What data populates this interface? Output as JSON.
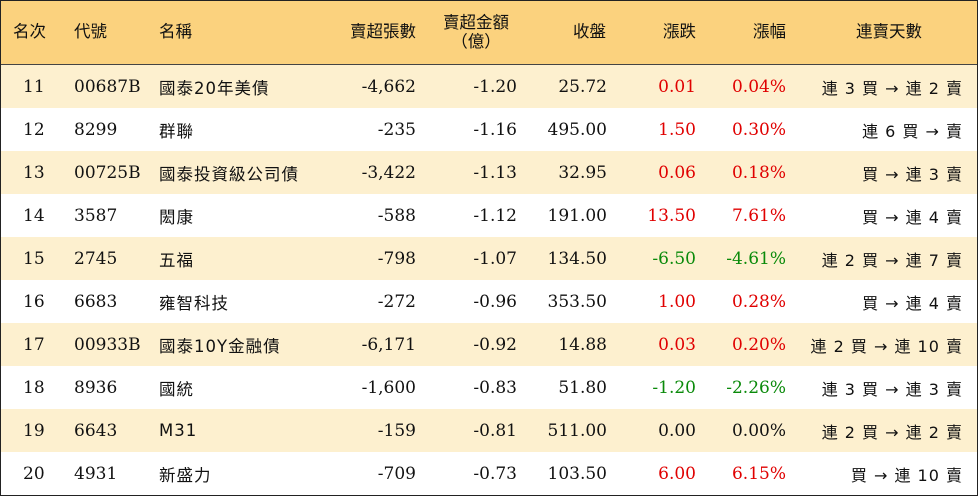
{
  "headers": {
    "rank": "名次",
    "code": "代號",
    "name": "名稱",
    "net_sell_shares": "賣超張數",
    "net_sell_amount_line1": "賣超金額",
    "net_sell_amount_line2": "（億）",
    "close": "收盤",
    "change": "漲跌",
    "change_pct": "漲幅",
    "streak": "連賣天數"
  },
  "colors": {
    "header_bg": "#fbd27e",
    "row_alt_bg": "#fdf0cf",
    "up": "#e00000",
    "down": "#0a8a0a"
  },
  "rows": [
    {
      "rank": "11",
      "code": "00687B",
      "name": "國泰20年美債",
      "shares": "-4,662",
      "amount": "-1.20",
      "close": "25.72",
      "change": "0.01",
      "pct": "0.04%",
      "dir": "up",
      "streak": "連 3 買 → 連 2 賣"
    },
    {
      "rank": "12",
      "code": "8299",
      "name": "群聯",
      "shares": "-235",
      "amount": "-1.16",
      "close": "495.00",
      "change": "1.50",
      "pct": "0.30%",
      "dir": "up",
      "streak": "連 6 買 → 賣"
    },
    {
      "rank": "13",
      "code": "00725B",
      "name": "國泰投資級公司債",
      "shares": "-3,422",
      "amount": "-1.13",
      "close": "32.95",
      "change": "0.06",
      "pct": "0.18%",
      "dir": "up",
      "streak": "買 → 連 3 賣"
    },
    {
      "rank": "14",
      "code": "3587",
      "name": "閎康",
      "shares": "-588",
      "amount": "-1.12",
      "close": "191.00",
      "change": "13.50",
      "pct": "7.61%",
      "dir": "up",
      "streak": "買 → 連 4 賣"
    },
    {
      "rank": "15",
      "code": "2745",
      "name": "五福",
      "shares": "-798",
      "amount": "-1.07",
      "close": "134.50",
      "change": "-6.50",
      "pct": "-4.61%",
      "dir": "down",
      "streak": "連 2 買 → 連 7 賣"
    },
    {
      "rank": "16",
      "code": "6683",
      "name": "雍智科技",
      "shares": "-272",
      "amount": "-0.96",
      "close": "353.50",
      "change": "1.00",
      "pct": "0.28%",
      "dir": "up",
      "streak": "買 → 連 4 賣"
    },
    {
      "rank": "17",
      "code": "00933B",
      "name": "國泰10Y金融債",
      "shares": "-6,171",
      "amount": "-0.92",
      "close": "14.88",
      "change": "0.03",
      "pct": "0.20%",
      "dir": "up",
      "streak": "連 2 買 → 連 10 賣"
    },
    {
      "rank": "18",
      "code": "8936",
      "name": "國統",
      "shares": "-1,600",
      "amount": "-0.83",
      "close": "51.80",
      "change": "-1.20",
      "pct": "-2.26%",
      "dir": "down",
      "streak": "連 3 買 → 連 3 賣"
    },
    {
      "rank": "19",
      "code": "6643",
      "name": "M31",
      "shares": "-159",
      "amount": "-0.81",
      "close": "511.00",
      "change": "0.00",
      "pct": "0.00%",
      "dir": "flat",
      "streak": "連 2 買 → 連 2 賣"
    },
    {
      "rank": "20",
      "code": "4931",
      "name": "新盛力",
      "shares": "-709",
      "amount": "-0.73",
      "close": "103.50",
      "change": "6.00",
      "pct": "6.15%",
      "dir": "up",
      "streak": "買 → 連 10 賣"
    }
  ]
}
